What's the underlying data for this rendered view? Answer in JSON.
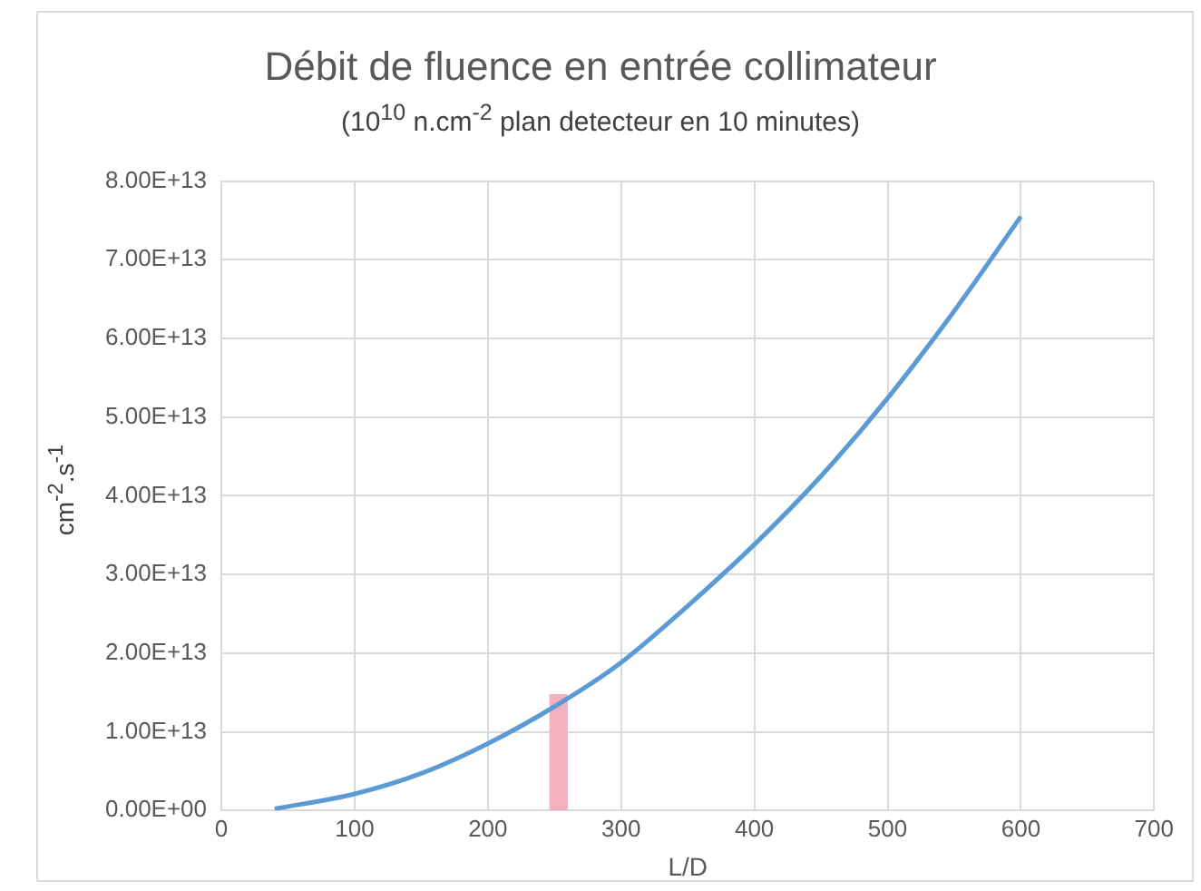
{
  "chart_data": {
    "type": "line",
    "title": "Débit de fluence en entrée collimateur",
    "subtitle": "(10$^{10}$ n.cm$^{-2}$  plan detecteur en 10 minutes)",
    "xlabel": "L/D",
    "ylabel": "cm$^{-2}$.s$^{-1}$",
    "series": [
      {
        "type": "line",
        "color": "#5b9bd5",
        "x": [
          40,
          100,
          150,
          200,
          250,
          300,
          350,
          400,
          450,
          500,
          550,
          600
        ],
        "values": [
          200000000000.0,
          2100000000000.0,
          4700000000000.0,
          8500000000000.0,
          13200000000000.0,
          18800000000000.0,
          26000000000000.0,
          33800000000000.0,
          42500000000000.0,
          52400000000000.0,
          63500000000000.0,
          75500000000000.0
        ]
      },
      {
        "type": "area",
        "color": "#f4b1bb",
        "x": [
          246,
          246,
          260,
          260
        ],
        "values": [
          0,
          14800000000000.0,
          14800000000000.0,
          0
        ]
      }
    ],
    "xlim": [
      0,
      700
    ],
    "xticks": [
      0,
      100,
      200,
      300,
      400,
      500,
      600,
      700
    ],
    "ylim": [
      0,
      80000000000000.0
    ],
    "yticks": [
      {
        "value": 0,
        "label": "0.00E+00"
      },
      {
        "value": 10000000000000.0,
        "label": "1.00E+13"
      },
      {
        "value": 20000000000000.0,
        "label": "2.00E+13"
      },
      {
        "value": 30000000000000.0,
        "label": "3.00E+13"
      },
      {
        "value": 40000000000000.0,
        "label": "4.00E+13"
      },
      {
        "value": 50000000000000.0,
        "label": "5.00E+13"
      },
      {
        "value": 60000000000000.0,
        "label": "6.00E+13"
      },
      {
        "value": 70000000000000.0,
        "label": "7.00E+13"
      },
      {
        "value": 80000000000000.0,
        "label": "8.00E+13"
      }
    ],
    "grid": true,
    "legend": false,
    "marker": "none"
  }
}
